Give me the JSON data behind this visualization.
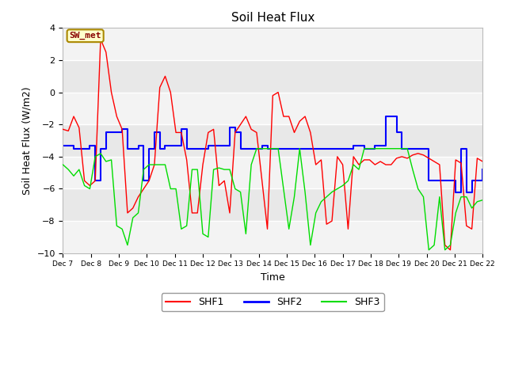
{
  "title": "Soil Heat Flux",
  "xlabel": "Time",
  "ylabel": "Soil Heat Flux (W/m2)",
  "ylim": [
    -10,
    4
  ],
  "yticks": [
    -10,
    -8,
    -6,
    -4,
    -2,
    0,
    2,
    4
  ],
  "xlabels": [
    "Dec 7",
    "Dec 8",
    "Dec 9",
    "Dec 10",
    "Dec 11",
    "Dec 12",
    "Dec 13",
    "Dec 14",
    "Dec 15",
    "Dec 16",
    "Dec 17",
    "Dec 18",
    "Dec 19",
    "Dec 20",
    "Dec 21",
    "Dec 22"
  ],
  "annotation_text": "SW_met",
  "annotation_bg": "#FFFFCC",
  "annotation_border": "#AA8800",
  "annotation_text_color": "#880000",
  "fig_bg": "#FFFFFF",
  "plot_bg": "#E8E8E8",
  "shf1_color": "#FF0000",
  "shf2_color": "#0000FF",
  "shf3_color": "#00DD00",
  "shf1_label": "SHF1",
  "shf2_label": "SHF2",
  "shf3_label": "SHF3",
  "shf1": [
    -2.3,
    -2.4,
    -1.5,
    -2.2,
    -5.5,
    -5.8,
    -5.5,
    3.3,
    2.5,
    0.0,
    -1.5,
    -2.3,
    -7.5,
    -7.2,
    -6.5,
    -6.0,
    -5.5,
    -4.5,
    0.3,
    1.0,
    0.0,
    -2.5,
    -2.5,
    -4.2,
    -7.5,
    -7.5,
    -4.5,
    -2.5,
    -2.3,
    -5.8,
    -5.5,
    -7.5,
    -2.5,
    -2.0,
    -1.5,
    -2.3,
    -2.5,
    -5.5,
    -8.5,
    -0.2,
    0.0,
    -1.5,
    -1.5,
    -2.5,
    -1.8,
    -1.5,
    -2.5,
    -4.5,
    -4.2,
    -8.2,
    -8.0,
    -4.0,
    -4.5,
    -8.5,
    -4.0,
    -4.5,
    -4.2,
    -4.2,
    -4.5,
    -4.3,
    -4.5,
    -4.5,
    -4.1,
    -4.0,
    -4.1,
    -3.9,
    -3.8,
    -3.9,
    -4.1,
    -4.3,
    -4.5,
    -9.5,
    -9.8,
    -4.2,
    -4.4,
    -8.3,
    -8.5,
    -4.1,
    -4.3
  ],
  "shf2": [
    -3.3,
    -3.3,
    -3.5,
    -3.5,
    -3.5,
    -3.3,
    -5.5,
    -3.5,
    -2.5,
    -2.5,
    -2.5,
    -2.3,
    -3.5,
    -3.5,
    -3.3,
    -5.5,
    -3.5,
    -2.5,
    -3.5,
    -3.3,
    -3.3,
    -3.3,
    -2.3,
    -3.5,
    -3.5,
    -3.5,
    -3.5,
    -3.3,
    -3.3,
    -3.3,
    -3.3,
    -2.2,
    -2.5,
    -3.5,
    -3.5,
    -3.5,
    -3.5,
    -3.3,
    -3.5,
    -3.5,
    -3.5,
    -3.5,
    -3.5,
    -3.5,
    -3.5,
    -3.5,
    -3.5,
    -3.5,
    -3.5,
    -3.5,
    -3.5,
    -3.5,
    -3.5,
    -3.5,
    -3.3,
    -3.3,
    -3.5,
    -3.5,
    -3.3,
    -3.3,
    -1.5,
    -1.5,
    -2.5,
    -3.5,
    -3.5,
    -3.5,
    -3.5,
    -3.5,
    -5.5,
    -5.5,
    -5.5,
    -5.5,
    -5.5,
    -6.2,
    -3.5,
    -6.2,
    -5.5,
    -5.5,
    -4.8
  ],
  "shf3": [
    -4.5,
    -4.8,
    -5.2,
    -4.8,
    -5.8,
    -6.0,
    -4.0,
    -3.8,
    -4.3,
    -4.2,
    -8.3,
    -8.5,
    -9.5,
    -7.8,
    -7.5,
    -4.8,
    -4.5,
    -4.5,
    -4.5,
    -4.5,
    -6.0,
    -6.0,
    -8.5,
    -8.3,
    -4.8,
    -4.8,
    -8.8,
    -9.0,
    -4.8,
    -4.7,
    -4.8,
    -4.8,
    -6.0,
    -6.2,
    -8.8,
    -4.5,
    -3.5,
    -3.5,
    -3.5,
    -3.5,
    -3.5,
    -6.0,
    -8.5,
    -6.5,
    -3.5,
    -6.2,
    -9.5,
    -7.5,
    -6.8,
    -6.5,
    -6.2,
    -6.0,
    -5.8,
    -5.5,
    -4.5,
    -4.8,
    -3.5,
    -3.5,
    -3.5,
    -3.5,
    -3.5,
    -3.5,
    -3.5,
    -3.5,
    -3.5,
    -4.8,
    -6.0,
    -6.5,
    -9.8,
    -9.5,
    -6.5,
    -9.8,
    -9.5,
    -7.5,
    -6.5,
    -6.5,
    -7.2,
    -6.8,
    -6.7
  ]
}
